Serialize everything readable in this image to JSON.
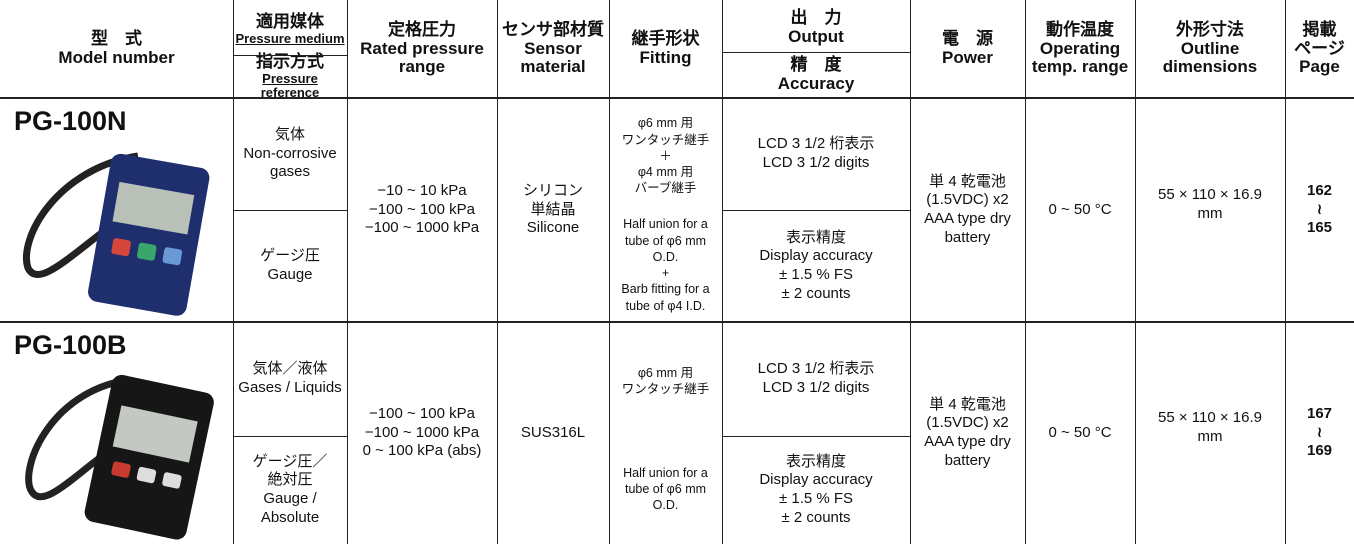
{
  "header": {
    "model": [
      "型　式",
      "Model number"
    ],
    "medium": [
      "適用媒体",
      "Pressure medium"
    ],
    "reference": [
      "指示方式",
      "Pressure reference"
    ],
    "pressure": [
      "定格圧力",
      "Rated pressure",
      "range"
    ],
    "sensor": [
      "センサ部材質",
      "Sensor",
      "material"
    ],
    "fitting": [
      "継手形状",
      "Fitting"
    ],
    "output": [
      "出　力",
      "Output"
    ],
    "accuracy": [
      "精　度",
      "Accuracy"
    ],
    "power": [
      "電　源",
      "Power"
    ],
    "temp": [
      "動作温度",
      "Operating",
      "temp. range"
    ],
    "dims": [
      "外形寸法",
      "Outline",
      "dimensions"
    ],
    "page": [
      "掲載",
      "ページ",
      "Page"
    ]
  },
  "rows": [
    {
      "model": "PG-100N",
      "medium": [
        "気体",
        "Non-corrosive",
        "gases"
      ],
      "reference": [
        "ゲージ圧",
        "Gauge"
      ],
      "pressure": [
        "−10 ~ 10 kPa",
        "−100 ~ 100 kPa",
        "−100 ~ 1000 kPa"
      ],
      "sensor": [
        "シリコン",
        "単結晶",
        "Silicone"
      ],
      "fitting_ja": [
        "φ6 mm 用",
        "ワンタッチ継手",
        "＋",
        "φ4 mm 用",
        "バーブ継手"
      ],
      "fitting_en": [
        "Half union for a",
        "tube of φ6 mm",
        "O.D.",
        "+",
        "Barb fitting for a",
        "tube of φ4 I.D."
      ],
      "output": [
        "LCD 3 1/2 桁表示",
        "LCD 3 1/2 digits"
      ],
      "accuracy": [
        "表示精度",
        "Display accuracy",
        "± 1.5 % FS",
        "± 2 counts"
      ],
      "power": [
        "単 4 乾電池",
        "(1.5VDC) x2",
        "AAA type dry",
        "battery"
      ],
      "temp": [
        "0 ~ 50 °C"
      ],
      "dims": [
        "55 × 110 × 16.9",
        "mm"
      ],
      "page": [
        "162",
        "≀",
        "165"
      ]
    },
    {
      "model": "PG-100B",
      "medium": [
        "気体／液体",
        "Gases / Liquids"
      ],
      "reference": [
        "ゲージ圧／",
        "絶対圧",
        "Gauge / Absolute"
      ],
      "pressure": [
        "−100 ~ 100 kPa",
        "−100 ~ 1000 kPa",
        "0 ~ 100 kPa (abs)"
      ],
      "sensor": [
        "SUS316L"
      ],
      "fitting_ja": [
        "φ6 mm 用",
        "ワンタッチ継手"
      ],
      "fitting_en": [
        "Half union for a",
        "tube of φ6 mm",
        "O.D."
      ],
      "output": [
        "LCD 3 1/2 桁表示",
        "LCD 3 1/2 digits"
      ],
      "accuracy": [
        "表示精度",
        "Display accuracy",
        "± 1.5 % FS",
        "± 2 counts"
      ],
      "power": [
        "単 4 乾電池",
        "(1.5VDC) x2",
        "AAA type dry",
        "battery"
      ],
      "temp": [
        "0 ~ 50 °C"
      ],
      "dims": [
        "55 × 110 × 16.9",
        "mm"
      ],
      "page": [
        "167",
        "≀",
        "169"
      ]
    }
  ]
}
